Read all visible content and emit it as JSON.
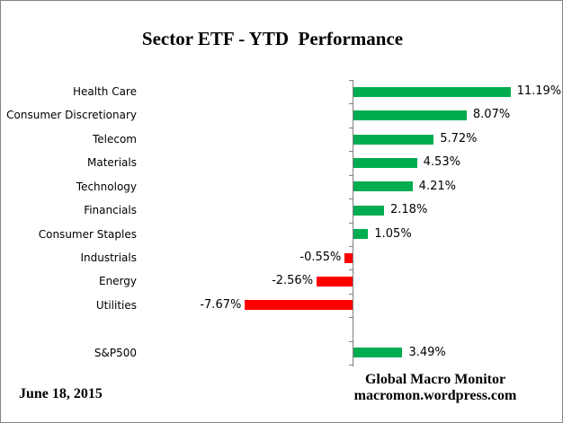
{
  "chart_data": {
    "type": "bar",
    "orientation": "horizontal",
    "title": "Sector ETF - YTD  Performance",
    "categories": [
      "Health Care",
      "Consumer Discretionary",
      "Telecom",
      "Materials",
      "Technology",
      "Financials",
      "Consumer Staples",
      "Industrials",
      "Energy",
      "Utilities",
      "S&P500"
    ],
    "values": [
      11.19,
      8.07,
      5.72,
      4.53,
      4.21,
      2.18,
      1.05,
      -0.55,
      -2.56,
      -7.67,
      3.49
    ],
    "value_labels": [
      "11.19%",
      "8.07%",
      "5.72%",
      "4.53%",
      "4.21%",
      "2.18%",
      "1.05%",
      "-0.55%",
      "-2.56%",
      "-7.67%",
      "3.49%"
    ],
    "spacer_before_index": 10,
    "positive_color": "#00AC50",
    "negative_color": "#FF0000",
    "axis_color": "#808080",
    "grid": false,
    "legend": false,
    "xlim": [
      -15,
      15
    ]
  },
  "footer": {
    "date": "June 18, 2015",
    "source_line1": "Global Macro Monitor",
    "source_line2": "macromon.wordpress.com"
  }
}
